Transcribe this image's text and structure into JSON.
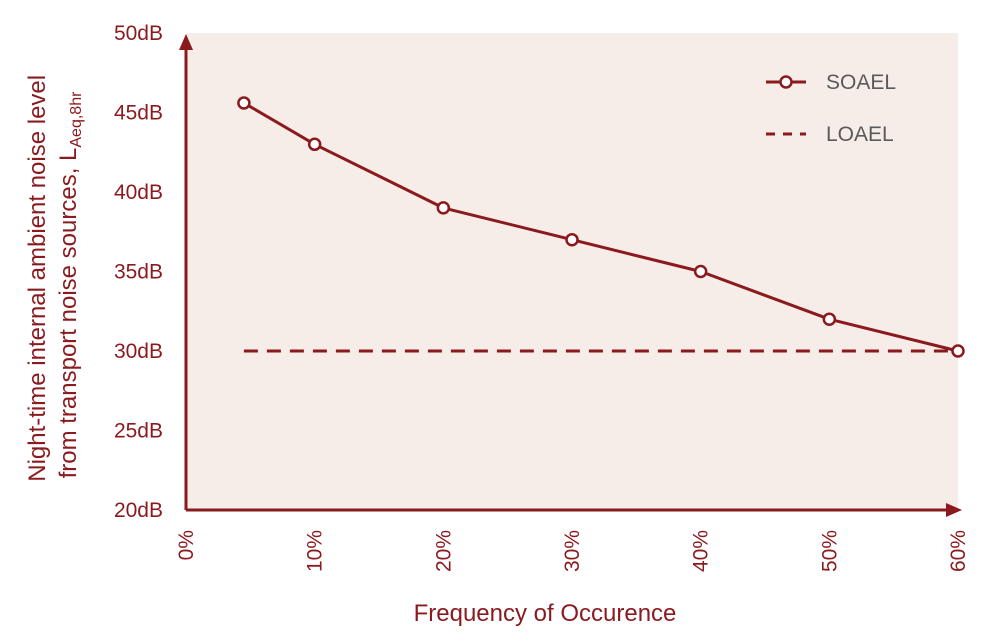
{
  "colors": {
    "accent": "#8b1a1f",
    "plot_background": "#f7ede8",
    "marker_fill": "#ffffff"
  },
  "chart_data": {
    "type": "line",
    "title": "",
    "xlabel": "Frequency of Occurence",
    "ylabel_main": "Night-time internal ambient noise level",
    "ylabel_second": "from transport noise sources, L",
    "ylabel_subscript": "Aeq,8hr",
    "xlim": [
      0,
      60
    ],
    "ylim": [
      20,
      50
    ],
    "x_ticks": [
      {
        "value": 0,
        "label": "0%"
      },
      {
        "value": 10,
        "label": "10%"
      },
      {
        "value": 20,
        "label": "20%"
      },
      {
        "value": 30,
        "label": "30%"
      },
      {
        "value": 40,
        "label": "40%"
      },
      {
        "value": 50,
        "label": "50%"
      },
      {
        "value": 60,
        "label": "60%"
      }
    ],
    "y_ticks": [
      {
        "value": 20,
        "label": "20dB"
      },
      {
        "value": 25,
        "label": "25dB"
      },
      {
        "value": 30,
        "label": "30dB"
      },
      {
        "value": 35,
        "label": "35dB"
      },
      {
        "value": 40,
        "label": "40dB"
      },
      {
        "value": 45,
        "label": "45dB"
      },
      {
        "value": 50,
        "label": "50dB"
      }
    ],
    "grid": false,
    "legend_position": "top-right",
    "series": [
      {
        "name": "SOAEL",
        "style": "solid-with-circle-markers",
        "x": [
          4.5,
          10,
          20,
          30,
          40,
          50,
          60
        ],
        "y": [
          45.6,
          43,
          39,
          37,
          35,
          32,
          30
        ]
      },
      {
        "name": "LOAEL",
        "style": "dashed",
        "x": [
          4.5,
          60
        ],
        "y": [
          30,
          30
        ]
      }
    ]
  }
}
